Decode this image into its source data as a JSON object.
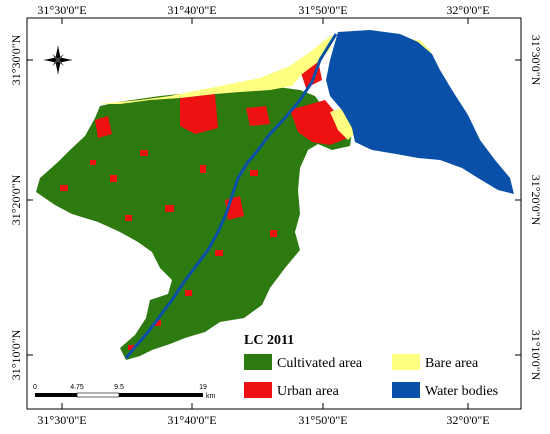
{
  "map": {
    "title": "LC 2011",
    "longitude_labels": [
      "31°30'0\"E",
      "31°40'0\"E",
      "31°50'0\"E",
      "32°0'0\"E"
    ],
    "latitude_labels": [
      "31°30'0\"N",
      "31°20'0\"N",
      "31°10'0\"N"
    ],
    "north_arrow": {
      "icon": "compass-rose-icon",
      "label": ""
    },
    "legend": [
      {
        "label": "Cultivated area",
        "color": "#2d7a10"
      },
      {
        "label": "Bare area",
        "color": "#ffff80"
      },
      {
        "label": "Urban area",
        "color": "#ee1111"
      },
      {
        "label": "Water bodies",
        "color": "#0a50a8"
      }
    ],
    "scale_bar": {
      "ticks": [
        "0",
        "4.75",
        "9.5",
        "19"
      ],
      "unit": "km"
    }
  }
}
